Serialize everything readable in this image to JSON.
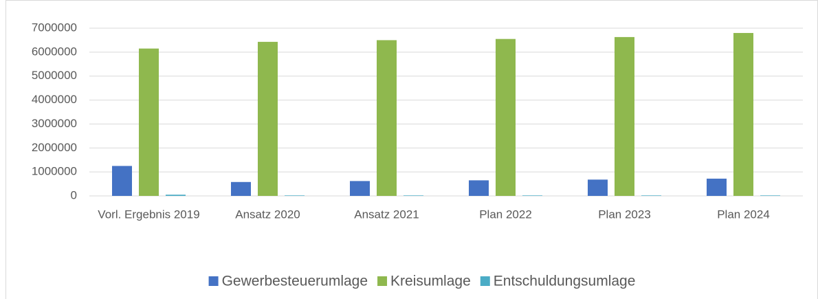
{
  "chart_data": {
    "type": "bar",
    "categories": [
      "Vorl. Ergebnis 2019",
      "Ansatz 2020",
      "Ansatz 2021",
      "Plan 2022",
      "Plan 2023",
      "Plan 2024"
    ],
    "series": [
      {
        "name": "Gewerbesteuerumlage",
        "color": "#4472c4",
        "values": [
          1250000,
          580000,
          620000,
          650000,
          680000,
          720000
        ]
      },
      {
        "name": "Kreisumlage",
        "color": "#8fb84e",
        "values": [
          6150000,
          6430000,
          6500000,
          6550000,
          6630000,
          6800000
        ]
      },
      {
        "name": "Entschuldungsumlage",
        "color": "#4bacc6",
        "values": [
          50000,
          20000,
          20000,
          20000,
          20000,
          20000
        ]
      }
    ],
    "ylim": [
      0,
      7000000
    ],
    "yticks": [
      0,
      1000000,
      2000000,
      3000000,
      4000000,
      5000000,
      6000000,
      7000000
    ],
    "grid": true,
    "legend": "bottom"
  }
}
